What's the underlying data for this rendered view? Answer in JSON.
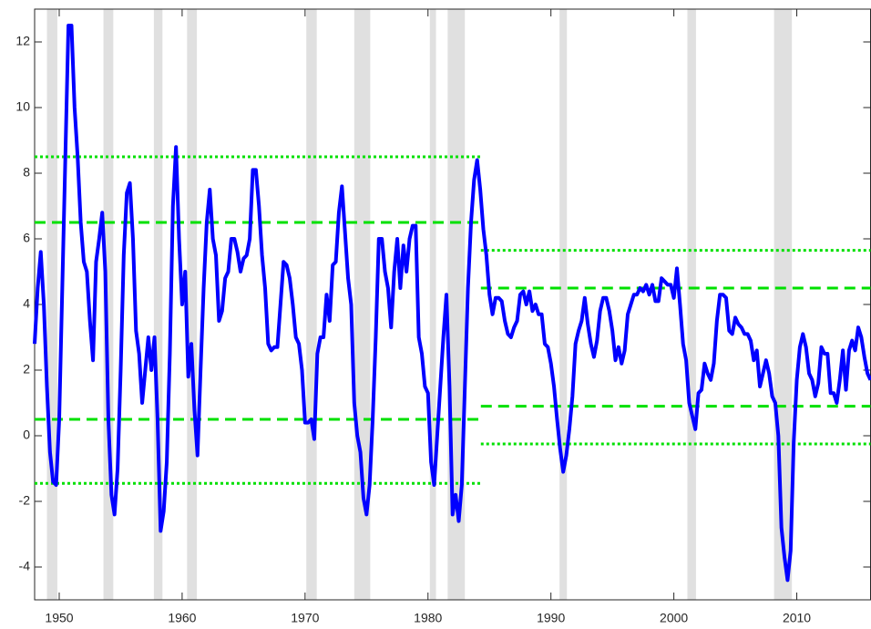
{
  "chart_data": {
    "type": "line",
    "color": "#0000ff",
    "band_color": "#00e000",
    "recession_color": "#e0e0e0",
    "axis_color": "#262626",
    "xlim": [
      1948,
      2016
    ],
    "ylim": [
      -5,
      13
    ],
    "xticks": [
      1950,
      1960,
      1970,
      1980,
      1990,
      2000,
      2010
    ],
    "yticks": [
      -4,
      -2,
      0,
      2,
      4,
      6,
      8,
      10,
      12
    ],
    "recessions": [
      [
        1949.0,
        1949.85
      ],
      [
        1953.6,
        1954.4
      ],
      [
        1957.7,
        1958.4
      ],
      [
        1960.4,
        1961.2
      ],
      [
        1970.1,
        1970.95
      ],
      [
        1974.0,
        1975.3
      ],
      [
        1980.15,
        1980.65
      ],
      [
        1981.6,
        1983.0
      ],
      [
        1990.7,
        1991.3
      ],
      [
        2001.1,
        2001.8
      ],
      [
        2008.15,
        2009.6
      ]
    ],
    "periods": [
      {
        "xrange": [
          1948,
          1984.3
        ],
        "dashed": [
          6.5,
          0.5
        ],
        "dotted": [
          8.5,
          -1.45
        ]
      },
      {
        "xrange": [
          1984.3,
          2016
        ],
        "dashed": [
          4.5,
          0.9
        ],
        "dotted": [
          5.65,
          -0.25
        ]
      }
    ],
    "x": [
      1948,
      1948.25,
      1948.5,
      1948.75,
      1949,
      1949.25,
      1949.5,
      1949.75,
      1950,
      1950.25,
      1950.5,
      1950.75,
      1951,
      1951.25,
      1951.5,
      1951.75,
      1952,
      1952.25,
      1952.5,
      1952.75,
      1953,
      1953.25,
      1953.5,
      1953.75,
      1954,
      1954.25,
      1954.5,
      1954.75,
      1955,
      1955.25,
      1955.5,
      1955.75,
      1956,
      1956.25,
      1956.5,
      1956.75,
      1957,
      1957.25,
      1957.5,
      1957.75,
      1958,
      1958.25,
      1958.5,
      1958.75,
      1959,
      1959.25,
      1959.5,
      1959.75,
      1960,
      1960.25,
      1960.5,
      1960.75,
      1961,
      1961.25,
      1961.5,
      1961.75,
      1962,
      1962.25,
      1962.5,
      1962.75,
      1963,
      1963.25,
      1963.5,
      1963.75,
      1964,
      1964.25,
      1964.5,
      1964.75,
      1965,
      1965.25,
      1965.5,
      1965.75,
      1966,
      1966.25,
      1966.5,
      1966.75,
      1967,
      1967.25,
      1967.5,
      1967.75,
      1968,
      1968.25,
      1968.5,
      1968.75,
      1969,
      1969.25,
      1969.5,
      1969.75,
      1970,
      1970.25,
      1970.5,
      1970.75,
      1971,
      1971.25,
      1971.5,
      1971.75,
      1972,
      1972.25,
      1972.5,
      1972.75,
      1973,
      1973.25,
      1973.5,
      1973.75,
      1974,
      1974.25,
      1974.5,
      1974.75,
      1975,
      1975.25,
      1975.5,
      1975.75,
      1976,
      1976.25,
      1976.5,
      1976.75,
      1977,
      1977.25,
      1977.5,
      1977.75,
      1978,
      1978.25,
      1978.5,
      1978.75,
      1979,
      1979.25,
      1979.5,
      1979.75,
      1980,
      1980.25,
      1980.5,
      1980.75,
      1981,
      1981.25,
      1981.5,
      1981.75,
      1982,
      1982.25,
      1982.5,
      1982.75,
      1983,
      1983.25,
      1983.5,
      1983.75,
      1984,
      1984.25,
      1984.5,
      1984.75,
      1985,
      1985.25,
      1985.5,
      1985.75,
      1986,
      1986.25,
      1986.5,
      1986.75,
      1987,
      1987.25,
      1987.5,
      1987.75,
      1988,
      1988.25,
      1988.5,
      1988.75,
      1989,
      1989.25,
      1989.5,
      1989.75,
      1990,
      1990.25,
      1990.5,
      1990.75,
      1991,
      1991.25,
      1991.5,
      1991.75,
      1992,
      1992.25,
      1992.5,
      1992.75,
      1993,
      1993.25,
      1993.5,
      1993.75,
      1994,
      1994.25,
      1994.5,
      1994.75,
      1995,
      1995.25,
      1995.5,
      1995.75,
      1996,
      1996.25,
      1996.5,
      1996.75,
      1997,
      1997.25,
      1997.5,
      1997.75,
      1998,
      1998.25,
      1998.5,
      1998.75,
      1999,
      1999.25,
      1999.5,
      1999.75,
      2000,
      2000.25,
      2000.5,
      2000.75,
      2001,
      2001.25,
      2001.5,
      2001.75,
      2002,
      2002.25,
      2002.5,
      2002.75,
      2003,
      2003.25,
      2003.5,
      2003.75,
      2004,
      2004.25,
      2004.5,
      2004.75,
      2005,
      2005.25,
      2005.5,
      2005.75,
      2006,
      2006.25,
      2006.5,
      2006.75,
      2007,
      2007.25,
      2007.5,
      2007.75,
      2008,
      2008.25,
      2008.5,
      2008.75,
      2009,
      2009.25,
      2009.5,
      2009.75,
      2010,
      2010.25,
      2010.5,
      2010.75,
      2011,
      2011.25,
      2011.5,
      2011.75,
      2012,
      2012.25,
      2012.5,
      2012.75,
      2013,
      2013.25,
      2013.5,
      2013.75,
      2014,
      2014.25,
      2014.5,
      2014.75,
      2015,
      2015.25,
      2015.5,
      2015.75,
      2016
    ],
    "values": [
      2.8,
      4.5,
      5.6,
      4.0,
      1.5,
      -0.5,
      -1.4,
      -1.5,
      0.5,
      4.5,
      8.5,
      12.5,
      12.5,
      10.0,
      8.5,
      6.5,
      5.3,
      5.0,
      3.5,
      2.3,
      5.3,
      6.0,
      6.8,
      5.0,
      0.5,
      -1.8,
      -2.4,
      -1.0,
      2.0,
      5.5,
      7.4,
      7.7,
      6.0,
      3.2,
      2.5,
      1.0,
      2.0,
      3.0,
      2.0,
      3.0,
      0.5,
      -2.9,
      -2.3,
      -0.8,
      2.5,
      7.0,
      8.8,
      6.0,
      4.0,
      5.0,
      1.8,
      2.8,
      0.8,
      -0.6,
      2.0,
      4.5,
      6.5,
      7.5,
      6.0,
      5.5,
      3.5,
      3.8,
      4.8,
      5.0,
      6.0,
      6.0,
      5.6,
      5.0,
      5.4,
      5.5,
      6.0,
      8.1,
      8.1,
      7.0,
      5.5,
      4.5,
      2.8,
      2.6,
      2.7,
      2.7,
      4.0,
      5.3,
      5.2,
      4.8,
      4.0,
      3.0,
      2.8,
      2.0,
      0.4,
      0.4,
      0.5,
      -0.1,
      2.5,
      3.0,
      3.0,
      4.3,
      3.5,
      5.2,
      5.3,
      6.8,
      7.6,
      6.2,
      4.8,
      4.0,
      1.0,
      0.0,
      -0.5,
      -1.9,
      -2.4,
      -1.5,
      0.5,
      3.0,
      6.0,
      6.0,
      5.0,
      4.5,
      3.3,
      5.0,
      6.0,
      4.5,
      5.8,
      5.0,
      6.0,
      6.4,
      6.4,
      3.0,
      2.5,
      1.5,
      1.3,
      -0.8,
      -1.5,
      0.0,
      1.5,
      3.0,
      4.3,
      1.5,
      -2.4,
      -1.8,
      -2.6,
      -1.5,
      1.5,
      4.5,
      6.5,
      7.8,
      8.4,
      7.5,
      6.3,
      5.5,
      4.3,
      3.7,
      4.2,
      4.2,
      4.1,
      3.5,
      3.1,
      3.0,
      3.3,
      3.5,
      4.3,
      4.4,
      4.0,
      4.4,
      3.8,
      4.0,
      3.7,
      3.7,
      2.8,
      2.7,
      2.2,
      1.5,
      0.5,
      -0.4,
      -1.1,
      -0.6,
      0.2,
      1.2,
      2.8,
      3.2,
      3.5,
      4.2,
      3.4,
      2.8,
      2.4,
      2.9,
      3.8,
      4.2,
      4.2,
      3.8,
      3.2,
      2.3,
      2.7,
      2.2,
      2.6,
      3.7,
      4.0,
      4.3,
      4.3,
      4.5,
      4.4,
      4.6,
      4.3,
      4.6,
      4.1,
      4.1,
      4.8,
      4.7,
      4.6,
      4.6,
      4.2,
      5.1,
      4.0,
      2.8,
      2.3,
      1.0,
      0.6,
      0.2,
      1.3,
      1.4,
      2.2,
      1.9,
      1.7,
      2.2,
      3.5,
      4.3,
      4.3,
      4.2,
      3.2,
      3.1,
      3.6,
      3.4,
      3.3,
      3.1,
      3.1,
      2.9,
      2.3,
      2.6,
      1.5,
      1.9,
      2.3,
      1.9,
      1.2,
      1.0,
      0.0,
      -2.8,
      -3.7,
      -4.4,
      -3.5,
      -0.2,
      1.7,
      2.7,
      3.1,
      2.7,
      1.9,
      1.7,
      1.2,
      1.6,
      2.7,
      2.5,
      2.5,
      1.3,
      1.3,
      1.0,
      1.7,
      2.6,
      1.4,
      2.6,
      2.9,
      2.6,
      3.3,
      3.0,
      2.4,
      1.9,
      1.7
    ]
  }
}
